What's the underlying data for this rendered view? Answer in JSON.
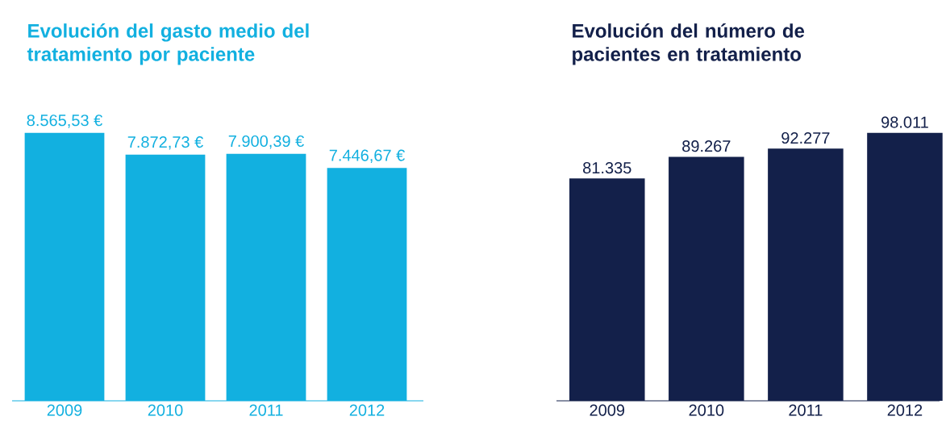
{
  "chart_data": [
    {
      "type": "bar",
      "title": "Evolución del gasto medio del tratamiento por paciente",
      "categories": [
        "2009",
        "2010",
        "2011",
        "2012"
      ],
      "values": [
        8565.53,
        7872.73,
        7900.39,
        7446.67
      ],
      "value_labels": [
        "8.565,53 €",
        "7.872,73 €",
        "7.900,39 €",
        "7.446,67 €"
      ],
      "color": "#12b0e0"
    },
    {
      "type": "bar",
      "title": "Evolución del número de pacientes en tratamiento",
      "categories": [
        "2009",
        "2010",
        "2011",
        "2012"
      ],
      "values": [
        81335,
        89267,
        92277,
        98011
      ],
      "value_labels": [
        "81.335",
        "89.267",
        "92.277",
        "98.011"
      ],
      "color": "#13204a"
    }
  ]
}
